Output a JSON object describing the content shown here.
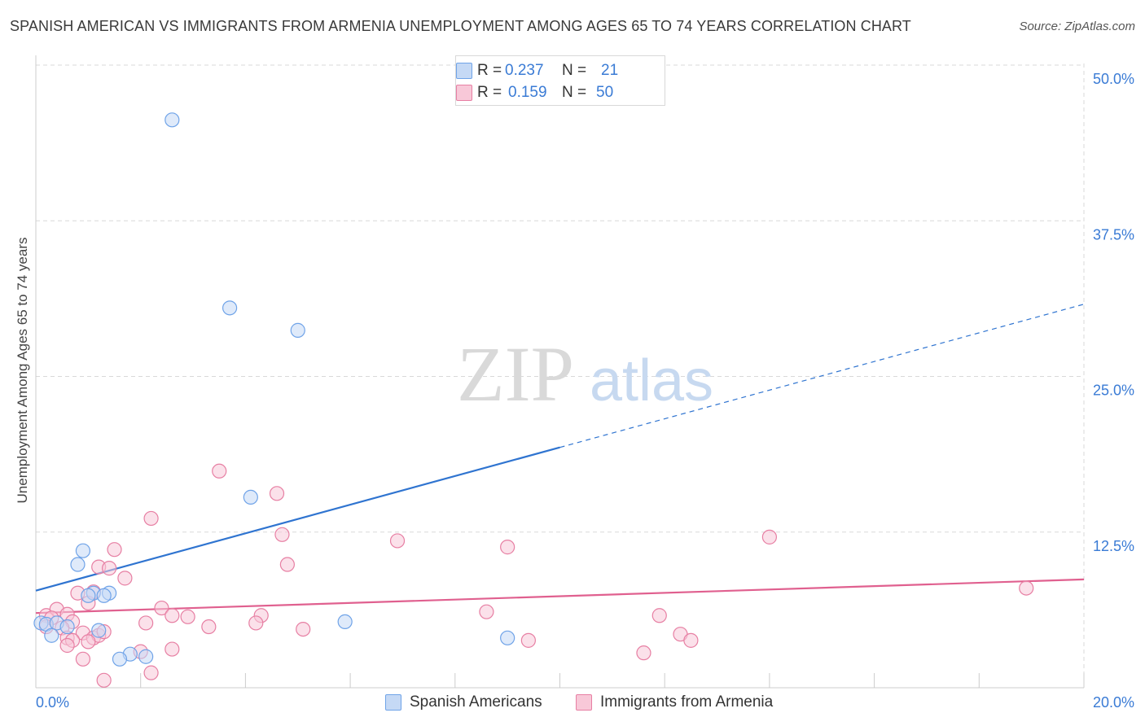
{
  "header": {
    "title": "SPANISH AMERICAN VS IMMIGRANTS FROM ARMENIA UNEMPLOYMENT AMONG AGES 65 TO 74 YEARS CORRELATION CHART",
    "source": "Source: ZipAtlas.com"
  },
  "watermark": {
    "zip": "ZIP",
    "atlas": "atlas"
  },
  "legend_top": {
    "rows": [
      {
        "r_key": "R =",
        "r_value": "0.237",
        "n_key": "N =",
        "n_value": "21"
      },
      {
        "r_key": "R =",
        "r_value": "0.159",
        "n_key": "N =",
        "n_value": "50"
      }
    ]
  },
  "chart_data": {
    "type": "scatter",
    "title": "SPANISH AMERICAN VS IMMIGRANTS FROM ARMENIA UNEMPLOYMENT AMONG AGES 65 TO 74 YEARS CORRELATION CHART",
    "xlabel": "",
    "ylabel": "Unemployment Among Ages 65 to 74 years",
    "xlim": [
      0,
      20
    ],
    "ylim": [
      0,
      50
    ],
    "x_tick_labels": [
      "0.0%",
      "20.0%"
    ],
    "y_tick_labels": [
      "12.5%",
      "25.0%",
      "37.5%",
      "50.0%"
    ],
    "y_ticks": [
      12.5,
      25.0,
      37.5,
      50.0
    ],
    "grid": true,
    "legend_placement": "bottom",
    "series": [
      {
        "name": "Spanish Americans",
        "color": "#6fa3e8",
        "fill": "#c5d9f5",
        "points": [
          [
            2.6,
            45.6
          ],
          [
            3.7,
            30.5
          ],
          [
            5.0,
            28.7
          ],
          [
            4.1,
            15.3
          ],
          [
            0.9,
            11.0
          ],
          [
            0.8,
            9.9
          ],
          [
            1.1,
            7.6
          ],
          [
            1.0,
            7.4
          ],
          [
            1.4,
            7.6
          ],
          [
            1.3,
            7.4
          ],
          [
            0.1,
            5.2
          ],
          [
            0.2,
            5.1
          ],
          [
            0.4,
            5.2
          ],
          [
            0.3,
            4.2
          ],
          [
            0.6,
            4.9
          ],
          [
            1.2,
            4.6
          ],
          [
            1.8,
            2.7
          ],
          [
            2.1,
            2.5
          ],
          [
            1.6,
            2.3
          ],
          [
            5.9,
            5.3
          ],
          [
            9.0,
            4.0
          ]
        ],
        "trend": {
          "x0": 0,
          "y0": 7.8,
          "x_solid_end": 10.0,
          "x1": 20,
          "y1": 30.8
        }
      },
      {
        "name": "Immigrants from Armenia",
        "color": "#e77fa3",
        "fill": "#f8c8d8",
        "points": [
          [
            3.5,
            17.4
          ],
          [
            4.6,
            15.6
          ],
          [
            2.2,
            13.6
          ],
          [
            4.7,
            12.3
          ],
          [
            6.9,
            11.8
          ],
          [
            9.0,
            11.3
          ],
          [
            14.0,
            12.1
          ],
          [
            1.5,
            11.1
          ],
          [
            4.8,
            9.9
          ],
          [
            1.2,
            9.7
          ],
          [
            1.4,
            9.6
          ],
          [
            1.7,
            8.8
          ],
          [
            1.1,
            7.7
          ],
          [
            0.8,
            7.6
          ],
          [
            1.0,
            6.8
          ],
          [
            2.4,
            6.4
          ],
          [
            4.3,
            5.8
          ],
          [
            2.6,
            5.8
          ],
          [
            2.9,
            5.7
          ],
          [
            8.6,
            6.1
          ],
          [
            11.9,
            5.8
          ],
          [
            18.9,
            8.0
          ],
          [
            0.2,
            5.8
          ],
          [
            0.4,
            6.3
          ],
          [
            0.6,
            5.9
          ],
          [
            0.3,
            5.6
          ],
          [
            0.7,
            5.3
          ],
          [
            0.5,
            4.8
          ],
          [
            0.2,
            4.9
          ],
          [
            0.6,
            4.0
          ],
          [
            0.9,
            4.4
          ],
          [
            1.1,
            4.0
          ],
          [
            1.2,
            4.2
          ],
          [
            1.3,
            4.5
          ],
          [
            0.7,
            3.8
          ],
          [
            1.0,
            3.7
          ],
          [
            0.6,
            3.4
          ],
          [
            2.1,
            5.2
          ],
          [
            3.3,
            4.9
          ],
          [
            4.2,
            5.2
          ],
          [
            5.1,
            4.7
          ],
          [
            9.4,
            3.8
          ],
          [
            12.3,
            4.3
          ],
          [
            12.5,
            3.8
          ],
          [
            11.6,
            2.8
          ],
          [
            2.6,
            3.1
          ],
          [
            2.0,
            2.9
          ],
          [
            0.9,
            2.3
          ],
          [
            2.2,
            1.2
          ],
          [
            1.3,
            0.6
          ]
        ],
        "trend": {
          "x0": 0,
          "y0": 6.0,
          "x_solid_end": 20,
          "x1": 20,
          "y1": 8.7
        }
      }
    ]
  },
  "legend_bottom": {
    "items": [
      {
        "label": "Spanish Americans"
      },
      {
        "label": "Immigrants from Armenia"
      }
    ]
  },
  "colors": {
    "blue_line": "#2f74d0",
    "pink_line": "#e0608f",
    "tick_text": "#3a7bd5",
    "grid": "#d9d9d9"
  }
}
